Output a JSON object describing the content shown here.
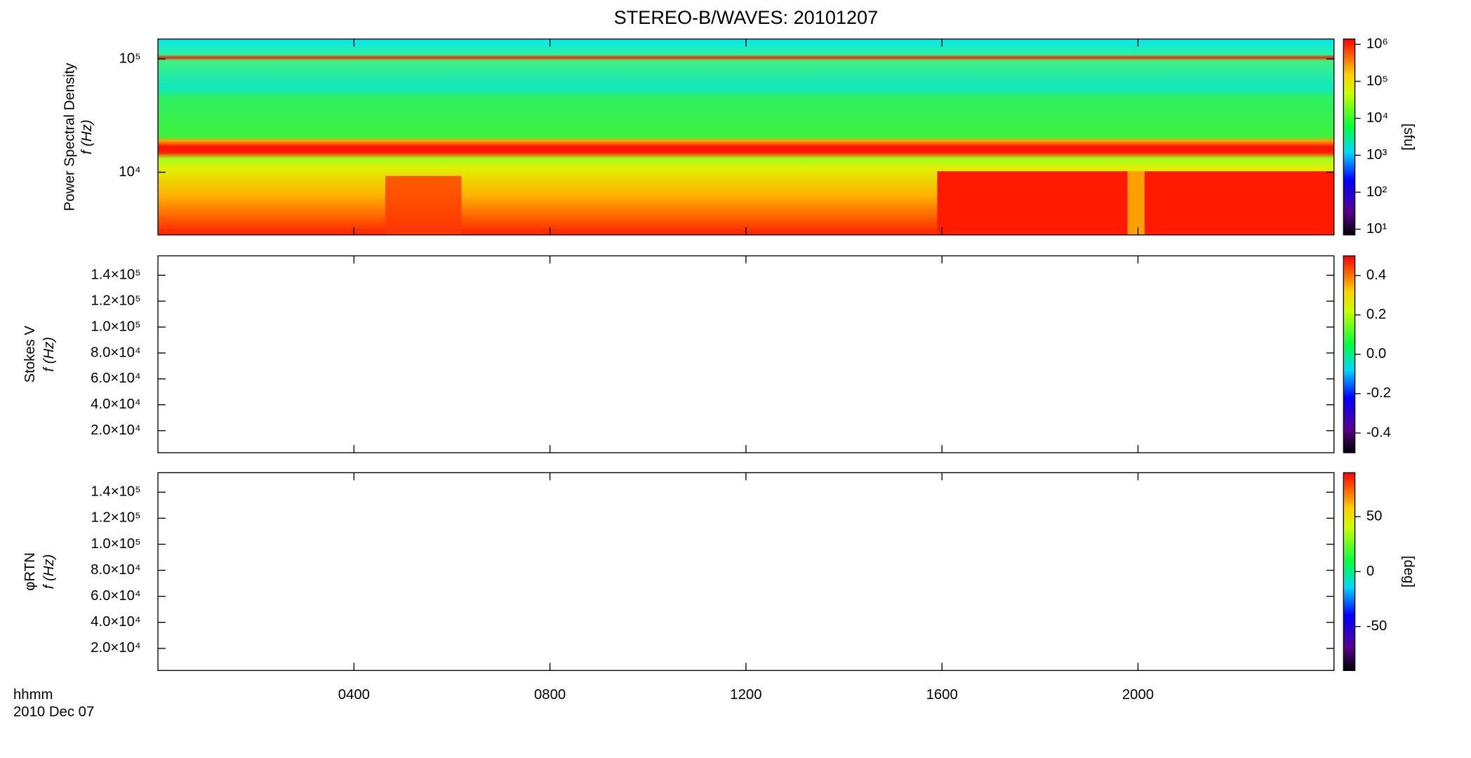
{
  "chart_data": {
    "type": "spectrogram",
    "title": "STEREO-B/WAVES: 20101207",
    "xlabel": [
      "hhmm",
      "2010 Dec 07"
    ],
    "xlim": [
      0,
      24
    ],
    "xticks": [
      {
        "value": 4,
        "label": "0400"
      },
      {
        "value": 8,
        "label": "0800"
      },
      {
        "value": 12,
        "label": "1200"
      },
      {
        "value": 16,
        "label": "1600"
      },
      {
        "value": 20,
        "label": "2000"
      }
    ],
    "panels": [
      {
        "ylabel": [
          "Power Spectral Density",
          "f (Hz)"
        ],
        "ylog": true,
        "ylim": [
          2800,
          150000
        ],
        "yticks": [
          {
            "value": 10000,
            "label": "10⁴"
          },
          {
            "value": 100000,
            "label": "10⁵"
          }
        ],
        "clog": true,
        "clim": [
          7,
          1400000
        ],
        "cticks": [
          {
            "value": 10,
            "label": "10¹"
          },
          {
            "value": 100,
            "label": "10²"
          },
          {
            "value": 1000,
            "label": "10³"
          },
          {
            "value": 10000,
            "label": "10⁴"
          },
          {
            "value": 100000,
            "label": "10⁵"
          },
          {
            "value": 1000000,
            "label": "10⁶"
          }
        ],
        "clabel": "[sfu]"
      },
      {
        "ylabel": [
          "Stokes V",
          "f (Hz)"
        ],
        "ylog": false,
        "ylim": [
          3000,
          155000
        ],
        "yticks": [
          {
            "value": 20000,
            "label": "2.0×10⁴"
          },
          {
            "value": 40000,
            "label": "4.0×10⁴"
          },
          {
            "value": 60000,
            "label": "6.0×10⁴"
          },
          {
            "value": 80000,
            "label": "8.0×10⁴"
          },
          {
            "value": 100000,
            "label": "1.0×10⁵"
          },
          {
            "value": 120000,
            "label": "1.2×10⁵"
          },
          {
            "value": 140000,
            "label": "1.4×10⁵"
          }
        ],
        "clog": false,
        "clim": [
          -0.5,
          0.5
        ],
        "cticks": [
          -0.4,
          -0.2,
          {
            "value": 0,
            "label": "0.0"
          },
          0.2,
          0.4
        ]
      },
      {
        "ylabel": [
          "φRTN",
          "f (Hz)"
        ],
        "ylog": false,
        "ylim": [
          3000,
          155000
        ],
        "yticks": [
          {
            "value": 20000,
            "label": "2.0×10⁴"
          },
          {
            "value": 40000,
            "label": "4.0×10⁴"
          },
          {
            "value": 60000,
            "label": "6.0×10⁴"
          },
          {
            "value": 80000,
            "label": "8.0×10⁴"
          },
          {
            "value": 100000,
            "label": "1.0×10⁵"
          },
          {
            "value": 120000,
            "label": "1.2×10⁵"
          },
          {
            "value": 140000,
            "label": "1.4×10⁵"
          }
        ],
        "clog": false,
        "clim": [
          -90,
          90
        ],
        "cticks": [
          -50,
          0,
          50
        ],
        "clabel": "[deg]"
      }
    ]
  }
}
